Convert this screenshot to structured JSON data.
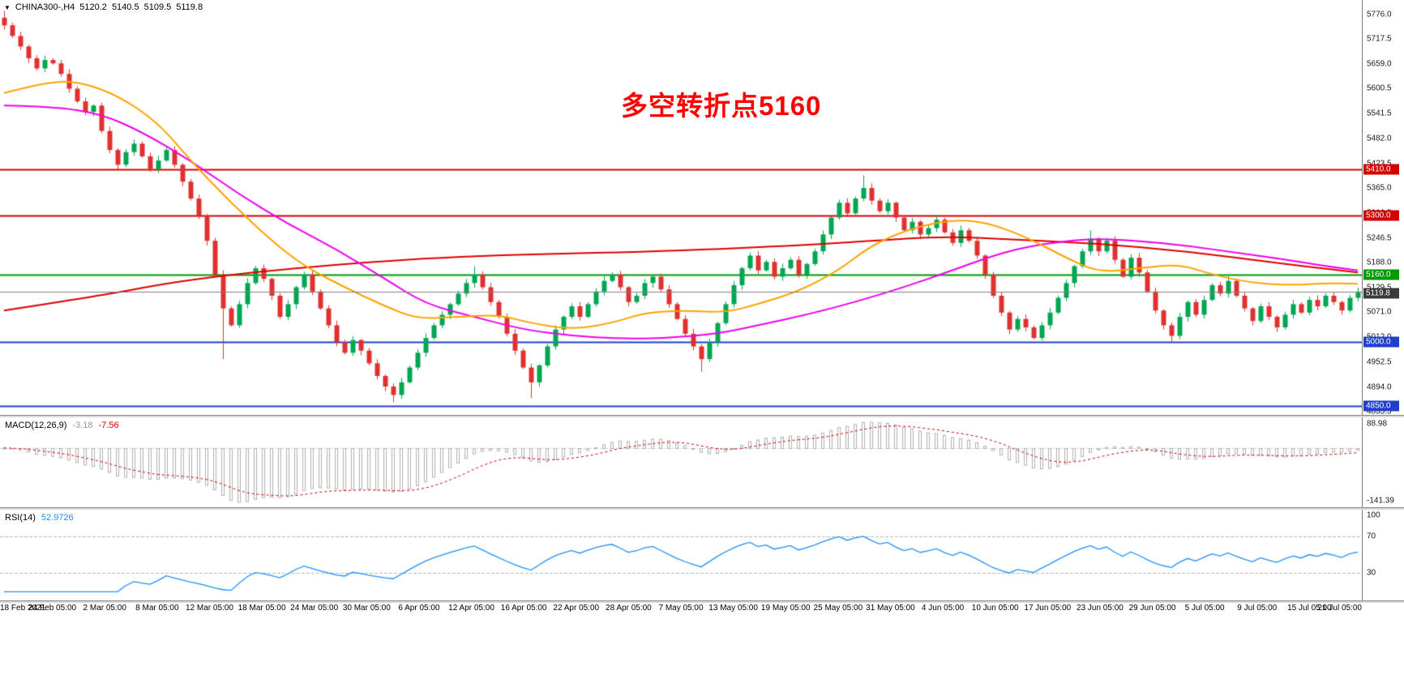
{
  "header": {
    "dropdown_icon": "▼",
    "symbol_period": "CHINA300-,H4",
    "ohlc": {
      "open": "5120.2",
      "high": "5140.5",
      "low": "5109.5",
      "close": "5119.8"
    }
  },
  "annotation": {
    "text": "多空转折点5160",
    "color": "#ff0000"
  },
  "price_axis": {
    "ticks": [
      "5776.0",
      "5717.5",
      "5659.0",
      "5600.5",
      "5541.5",
      "5482.0",
      "5423.5",
      "5365.0",
      "5306.5",
      "5246.5",
      "5188.0",
      "5129.5",
      "5071.0",
      "5012.0",
      "4952.5",
      "4894.0",
      "4835.5"
    ]
  },
  "macd_panel": {
    "label": "MACD(12,26,9)",
    "value_main": "-3.18",
    "value_signal": "-7.56",
    "value_main_color": "#9a9a9a",
    "value_signal_color": "#d40000",
    "axis_ticks": [
      "88.98",
      "-141.39"
    ],
    "bar_color": "#b0b0b0",
    "signal_color": "#d40000"
  },
  "rsi_panel": {
    "label": "RSI(14)",
    "value": "52.9726",
    "value_color": "#1e90ff",
    "line_color": "#1e90ff",
    "axis_ticks": [
      "100",
      "70",
      "30"
    ],
    "level_lines": [
      70,
      30
    ],
    "level_line_color": "#b8b8b8"
  },
  "time_axis": {
    "labels": [
      "18 Feb 2021",
      "24 Feb 05:00",
      "2 Mar 05:00",
      "8 Mar 05:00",
      "12 Mar 05:00",
      "18 Mar 05:00",
      "24 Mar 05:00",
      "30 Mar 05:00",
      "6 Apr 05:00",
      "12 Apr 05:00",
      "16 Apr 05:00",
      "22 Apr 05:00",
      "28 Apr 05:00",
      "7 May 05:00",
      "13 May 05:00",
      "19 May 05:00",
      "25 May 05:00",
      "31 May 05:00",
      "4 Jun 05:00",
      "10 Jun 05:00",
      "17 Jun 05:00",
      "23 Jun 05:00",
      "29 Jun 05:00",
      "5 Jul 05:00",
      "9 Jul 05:00",
      "15 Jul 05:00",
      "21 Jul 05:00"
    ]
  },
  "chart_data": {
    "type": "candlestick",
    "title": "CHINA300- H4",
    "current_ohlc": {
      "open": 5120.2,
      "high": 5140.5,
      "low": 5109.5,
      "close": 5119.8
    },
    "y_range": [
      4828,
      5810
    ],
    "up_color": "#00a651",
    "down_color": "#e03131",
    "first_open": 5768,
    "closes": [
      5750,
      5725,
      5700,
      5672,
      5648,
      5668,
      5660,
      5635,
      5600,
      5570,
      5545,
      5560,
      5500,
      5455,
      5420,
      5450,
      5470,
      5440,
      5410,
      5430,
      5455,
      5420,
      5380,
      5340,
      5300,
      5240,
      5160,
      5080,
      5040,
      5090,
      5140,
      5175,
      5150,
      5110,
      5060,
      5090,
      5130,
      5160,
      5120,
      5080,
      5040,
      5000,
      4975,
      5005,
      4980,
      4950,
      4920,
      4895,
      4875,
      4905,
      4940,
      4975,
      5010,
      5040,
      5065,
      5090,
      5115,
      5140,
      5160,
      5130,
      5095,
      5060,
      5020,
      4980,
      4940,
      4905,
      4945,
      4990,
      5030,
      5060,
      5085,
      5060,
      5090,
      5120,
      5145,
      5160,
      5130,
      5095,
      5110,
      5140,
      5155,
      5125,
      5090,
      5055,
      5020,
      4990,
      4960,
      5000,
      5045,
      5090,
      5135,
      5175,
      5205,
      5170,
      5190,
      5155,
      5175,
      5195,
      5160,
      5185,
      5215,
      5255,
      5295,
      5330,
      5305,
      5340,
      5365,
      5335,
      5310,
      5330,
      5295,
      5265,
      5285,
      5255,
      5270,
      5290,
      5260,
      5235,
      5265,
      5240,
      5205,
      5160,
      5110,
      5070,
      5030,
      5055,
      5035,
      5010,
      5040,
      5070,
      5105,
      5140,
      5180,
      5215,
      5245,
      5215,
      5240,
      5195,
      5155,
      5200,
      5165,
      5120,
      5075,
      5040,
      5015,
      5060,
      5095,
      5065,
      5100,
      5135,
      5115,
      5145,
      5110,
      5080,
      5050,
      5085,
      5060,
      5035,
      5065,
      5090,
      5070,
      5100,
      5085,
      5110,
      5095,
      5075,
      5105,
      5119.8
    ],
    "wick_overrides": {
      "0": [
        5784,
        null
      ],
      "27": [
        null,
        4960
      ],
      "48": [
        null,
        4858
      ],
      "58": [
        5180,
        null
      ],
      "65": [
        null,
        4868
      ],
      "86": [
        null,
        4930
      ],
      "106": [
        5395,
        null
      ],
      "134": [
        5265,
        null
      ],
      "144": [
        null,
        5000
      ]
    },
    "levels": [
      {
        "price": 5410.0,
        "color": "#d40000",
        "label": "5410.0",
        "width": 2
      },
      {
        "price": 5300.0,
        "color": "#d40000",
        "label": "5300.0",
        "width": 2
      },
      {
        "price": 5160.0,
        "color": "#009900",
        "label": "5160.0",
        "width": 2
      },
      {
        "price": 5000.0,
        "color": "#2040cc",
        "label": "5000.0",
        "width": 2
      },
      {
        "price": 4850.0,
        "color": "#2040cc",
        "label": "4850.0",
        "width": 2
      }
    ],
    "current_price": {
      "value": 5119.8,
      "line_color": "#808080",
      "badge_color": "#3a3a3a"
    },
    "moving_averages": [
      {
        "name": "ma-slow-red",
        "color": "#dd0000",
        "points": [
          [
            0,
            5075
          ],
          [
            12,
            5110
          ],
          [
            23,
            5150
          ],
          [
            41,
            5185
          ],
          [
            58,
            5205
          ],
          [
            82,
            5215
          ],
          [
            99,
            5230
          ],
          [
            111,
            5245
          ],
          [
            117,
            5250
          ],
          [
            122,
            5245
          ],
          [
            134,
            5235
          ],
          [
            146,
            5215
          ],
          [
            158,
            5185
          ],
          [
            167,
            5165
          ]
        ]
      },
      {
        "name": "ma-mid-magenta",
        "color": "#ee00ee",
        "points": [
          [
            0,
            5560
          ],
          [
            6,
            5558
          ],
          [
            12,
            5540
          ],
          [
            17,
            5498
          ],
          [
            23,
            5430
          ],
          [
            29,
            5350
          ],
          [
            35,
            5280
          ],
          [
            41,
            5220
          ],
          [
            47,
            5150
          ],
          [
            52,
            5090
          ],
          [
            58,
            5060
          ],
          [
            64,
            5030
          ],
          [
            70,
            5015
          ],
          [
            76,
            5008
          ],
          [
            82,
            5010
          ],
          [
            88,
            5020
          ],
          [
            93,
            5040
          ],
          [
            99,
            5065
          ],
          [
            105,
            5095
          ],
          [
            111,
            5130
          ],
          [
            117,
            5170
          ],
          [
            122,
            5205
          ],
          [
            126,
            5225
          ],
          [
            131,
            5240
          ],
          [
            135,
            5245
          ],
          [
            140,
            5240
          ],
          [
            146,
            5228
          ],
          [
            152,
            5212
          ],
          [
            158,
            5196
          ],
          [
            163,
            5180
          ],
          [
            167,
            5170
          ]
        ]
      },
      {
        "name": "ma-fast-orange",
        "color": "#ffa200",
        "points": [
          [
            0,
            5590
          ],
          [
            5,
            5615
          ],
          [
            9,
            5618
          ],
          [
            14,
            5585
          ],
          [
            19,
            5520
          ],
          [
            23,
            5430
          ],
          [
            28,
            5330
          ],
          [
            33,
            5240
          ],
          [
            37,
            5180
          ],
          [
            42,
            5130
          ],
          [
            47,
            5085
          ],
          [
            51,
            5055
          ],
          [
            56,
            5060
          ],
          [
            61,
            5065
          ],
          [
            65,
            5045
          ],
          [
            70,
            5030
          ],
          [
            75,
            5045
          ],
          [
            79,
            5070
          ],
          [
            84,
            5075
          ],
          [
            89,
            5070
          ],
          [
            93,
            5090
          ],
          [
            98,
            5120
          ],
          [
            103,
            5170
          ],
          [
            107,
            5230
          ],
          [
            112,
            5270
          ],
          [
            117,
            5290
          ],
          [
            121,
            5285
          ],
          [
            126,
            5250
          ],
          [
            131,
            5200
          ],
          [
            135,
            5165
          ],
          [
            140,
            5175
          ],
          [
            145,
            5185
          ],
          [
            149,
            5160
          ],
          [
            154,
            5140
          ],
          [
            159,
            5135
          ],
          [
            163,
            5140
          ],
          [
            167,
            5138
          ]
        ]
      }
    ],
    "indicators": {
      "macd": [
        12,
        26,
        9
      ],
      "rsi": 14
    }
  }
}
